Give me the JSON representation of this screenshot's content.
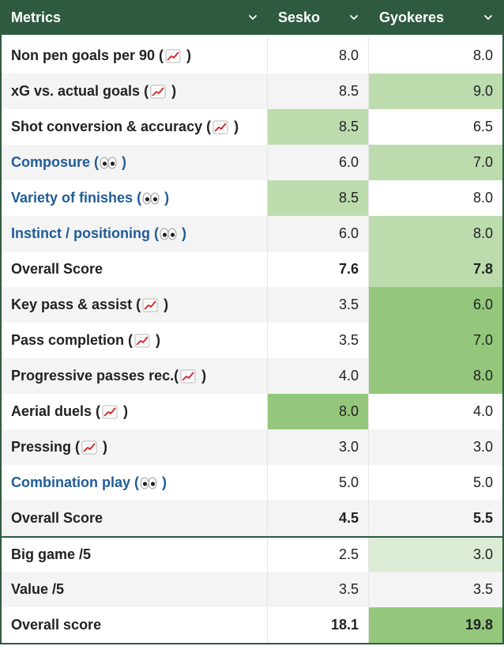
{
  "header": {
    "metric_label": "Metrics",
    "col1_label": "Sesko",
    "col2_label": "Gyokeres",
    "chevron_icon": "chevron-down-icon"
  },
  "colors": {
    "header_bg": "#2e5a40",
    "link_text": "#1f5c99",
    "highlight_light": "#dcecd4",
    "highlight_mid": "#bcdcae",
    "highlight_strong": "#94c77b"
  },
  "rows": [
    {
      "metric": "Non pen goals per 90",
      "icon": "chart-up-icon",
      "link": false,
      "sesko": "8.0",
      "gyokeres": "8.0",
      "sesko_bg": "",
      "gyokeres_bg": "",
      "alt": false,
      "total": false,
      "sep": false
    },
    {
      "metric": "xG vs. actual goals",
      "icon": "chart-up-icon",
      "link": false,
      "sesko": "8.5",
      "gyokeres": "9.0",
      "sesko_bg": "",
      "gyokeres_bg": "mid",
      "alt": true,
      "total": false,
      "sep": false
    },
    {
      "metric": "Shot conversion & accuracy",
      "icon": "chart-up-icon",
      "link": false,
      "sesko": "8.5",
      "gyokeres": "6.5",
      "sesko_bg": "mid",
      "gyokeres_bg": "",
      "alt": false,
      "total": false,
      "sep": false
    },
    {
      "metric": "Composure",
      "icon": "eyes-icon",
      "link": true,
      "sesko": "6.0",
      "gyokeres": "7.0",
      "sesko_bg": "",
      "gyokeres_bg": "mid",
      "alt": true,
      "total": false,
      "sep": false
    },
    {
      "metric": "Variety of finishes",
      "icon": "eyes-icon",
      "link": true,
      "sesko": "8.5",
      "gyokeres": "8.0",
      "sesko_bg": "mid",
      "gyokeres_bg": "",
      "alt": false,
      "total": false,
      "sep": false
    },
    {
      "metric": "Instinct / positioning",
      "icon": "eyes-icon",
      "link": true,
      "sesko": "6.0",
      "gyokeres": "8.0",
      "sesko_bg": "",
      "gyokeres_bg": "mid",
      "alt": true,
      "total": false,
      "sep": false
    },
    {
      "metric": "Overall Score",
      "icon": "",
      "link": false,
      "sesko": "7.6",
      "gyokeres": "7.8",
      "sesko_bg": "",
      "gyokeres_bg": "mid",
      "alt": false,
      "total": true,
      "sep": false
    },
    {
      "metric": "Key pass & assist",
      "icon": "chart-up-icon",
      "link": false,
      "sesko": "3.5",
      "gyokeres": "6.0",
      "sesko_bg": "",
      "gyokeres_bg": "strong",
      "alt": true,
      "total": false,
      "sep": false
    },
    {
      "metric": "Pass completion",
      "icon": "chart-up-icon",
      "link": false,
      "sesko": "3.5",
      "gyokeres": "7.0",
      "sesko_bg": "",
      "gyokeres_bg": "strong",
      "alt": false,
      "total": false,
      "sep": false
    },
    {
      "metric": "Progressive passes rec.",
      "icon": "chart-up-icon",
      "link": false,
      "sesko": "4.0",
      "gyokeres": "8.0",
      "sesko_bg": "",
      "gyokeres_bg": "strong",
      "alt": true,
      "total": false,
      "sep": false,
      "no_space": true
    },
    {
      "metric": "Aerial duels",
      "icon": "chart-up-icon",
      "link": false,
      "sesko": "8.0",
      "gyokeres": "4.0",
      "sesko_bg": "strong",
      "gyokeres_bg": "",
      "alt": false,
      "total": false,
      "sep": false
    },
    {
      "metric": "Pressing",
      "icon": "chart-up-icon",
      "link": false,
      "sesko": "3.0",
      "gyokeres": "3.0",
      "sesko_bg": "",
      "gyokeres_bg": "",
      "alt": true,
      "total": false,
      "sep": false
    },
    {
      "metric": "Combination play",
      "icon": "eyes-icon",
      "link": true,
      "sesko": "5.0",
      "gyokeres": "5.0",
      "sesko_bg": "",
      "gyokeres_bg": "",
      "alt": false,
      "total": false,
      "sep": false
    },
    {
      "metric": "Overall Score",
      "icon": "",
      "link": false,
      "sesko": "4.5",
      "gyokeres": "5.5",
      "sesko_bg": "",
      "gyokeres_bg": "",
      "alt": true,
      "total": true,
      "sep": false
    },
    {
      "metric": "Big game /5",
      "icon": "",
      "link": false,
      "sesko": "2.5",
      "gyokeres": "3.0",
      "sesko_bg": "",
      "gyokeres_bg": "light",
      "alt": false,
      "total": false,
      "sep": true
    },
    {
      "metric": "Value /5",
      "icon": "",
      "link": false,
      "sesko": "3.5",
      "gyokeres": "3.5",
      "sesko_bg": "",
      "gyokeres_bg": "",
      "alt": true,
      "total": false,
      "sep": false
    },
    {
      "metric": "Overall score",
      "icon": "",
      "link": false,
      "sesko": "18.1",
      "gyokeres": "19.8",
      "sesko_bg": "",
      "gyokeres_bg": "strong",
      "alt": false,
      "total": true,
      "sep": false
    }
  ]
}
